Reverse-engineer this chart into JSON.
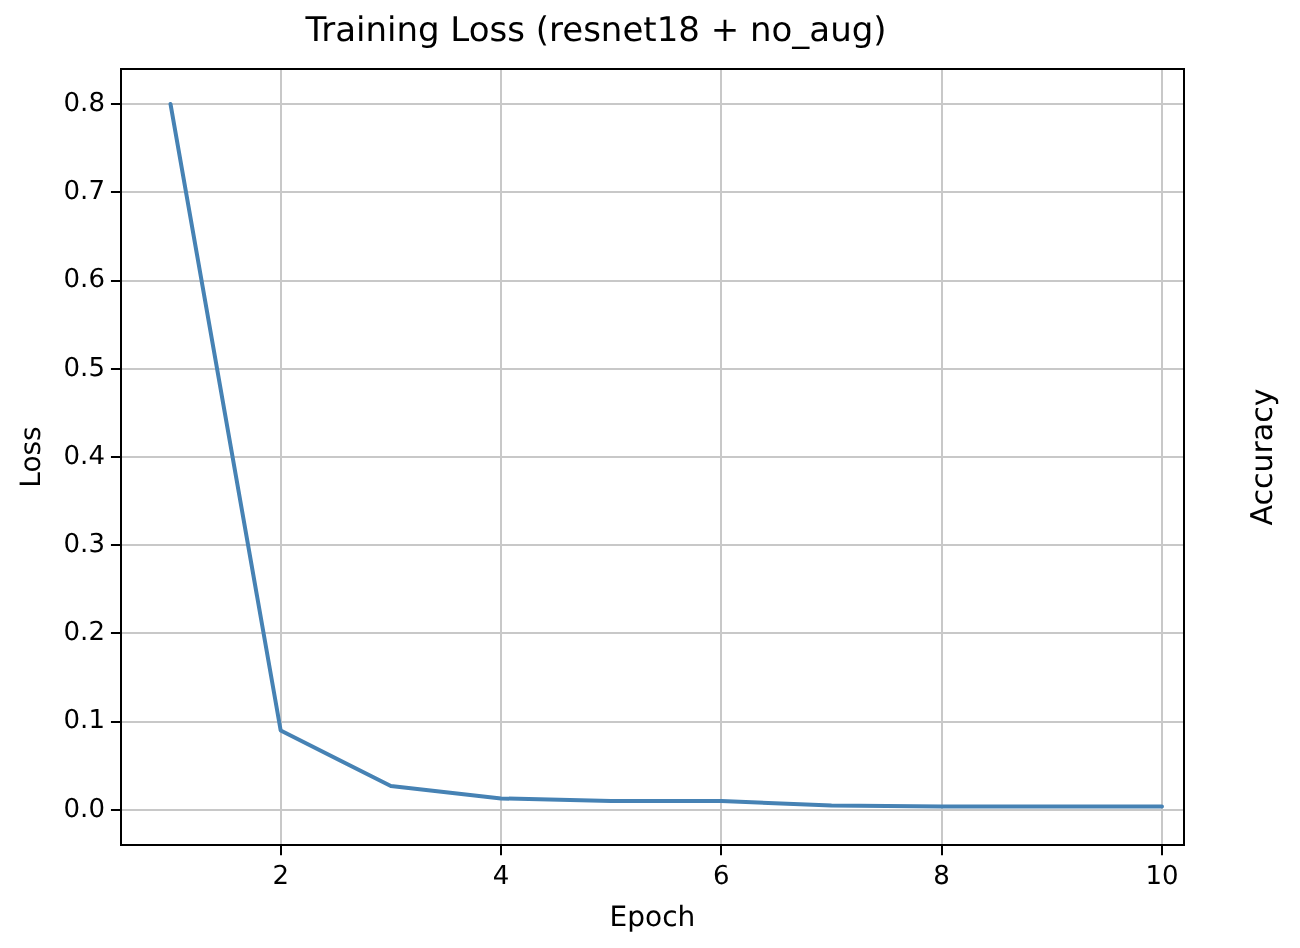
{
  "chart_data": {
    "type": "line",
    "title": "Training Loss (resnet18 + no_aug)",
    "xlabel": "Epoch",
    "ylabel": "Loss",
    "y2label": "Accuracy",
    "x": [
      1,
      2,
      3,
      4,
      5,
      6,
      7,
      8,
      9,
      10
    ],
    "series": [
      {
        "color": "#4682b4",
        "values": [
          0.8,
          0.09,
          0.027,
          0.013,
          0.01,
          0.01,
          0.005,
          0.004,
          0.004,
          0.004
        ]
      }
    ],
    "xlim": [
      0.55,
      10.2
    ],
    "xticks": [
      2,
      4,
      6,
      8,
      10
    ],
    "ylim": [
      -0.04,
      0.84
    ],
    "yticks": [
      {
        "value": 0,
        "label": "0.0"
      },
      0.1,
      0.2,
      0.3,
      0.4,
      0.5,
      0.6,
      0.7,
      0.8
    ],
    "grid": true,
    "marker": "none",
    "line_style": "solid",
    "legend": false
  }
}
